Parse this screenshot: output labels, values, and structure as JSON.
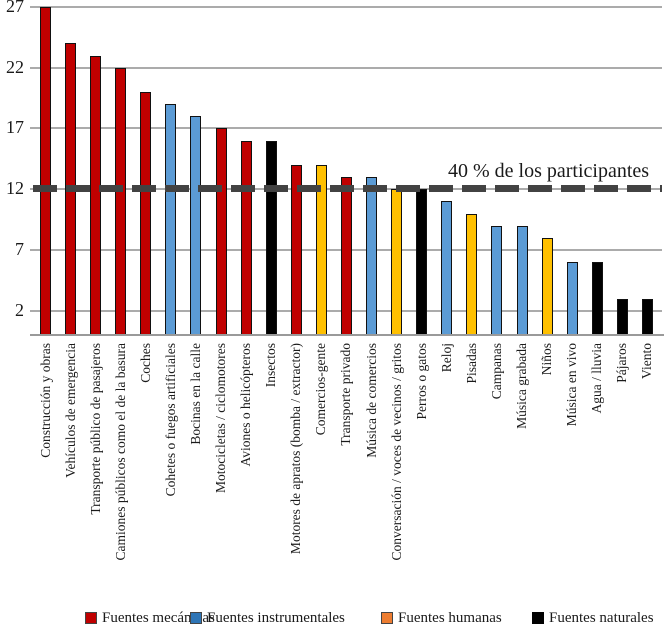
{
  "chart_data": {
    "type": "bar",
    "title": "",
    "xlabel": "",
    "ylabel": "",
    "ylim": [
      0,
      27.5
    ],
    "y_ticks": [
      2,
      7,
      12,
      17,
      22,
      27
    ],
    "grid": true,
    "legend_position": "bottom",
    "reference_line": {
      "value": 12.1,
      "label": "40 % de los participantes",
      "color": "#424242"
    },
    "categories": [
      "Construcción y obras",
      "Vehículos de emergencia",
      "Transporte público de pasajeros",
      "Camiones públicos como el de la basura",
      "Coches",
      "Cohetes o fuegos artificiales",
      "Bocinas en la calle",
      "Motocicletas / ciclomotores",
      "Aviones o helicópteros",
      "Insectos",
      "Motores de apratos (bomba / extractor)",
      "Comercios-gente",
      "Transporte privado",
      "Música de comercios",
      "Conversación / voces de vecinos / gritos",
      "Perros o gatos",
      "Reloj",
      "Pisadas",
      "Campanas",
      "Música grabada",
      "Niños",
      "Música en vivo",
      "Agua / lluvia",
      "Pájaros",
      "Viento"
    ],
    "values": [
      27,
      24,
      23,
      22,
      20,
      19,
      18,
      17,
      16,
      16,
      14,
      14,
      13,
      13,
      12,
      12,
      11,
      10,
      9,
      9,
      8,
      6,
      6,
      3,
      3
    ],
    "bar_groups": [
      "mecanicas",
      "mecanicas",
      "mecanicas",
      "mecanicas",
      "mecanicas",
      "instrumentales",
      "instrumentales",
      "mecanicas",
      "mecanicas",
      "naturales",
      "mecanicas",
      "humanas",
      "mecanicas",
      "instrumentales",
      "humanas",
      "naturales",
      "instrumentales",
      "humanas",
      "instrumentales",
      "instrumentales",
      "humanas",
      "instrumentales",
      "naturales",
      "naturales",
      "naturales"
    ],
    "group_bar_colors": {
      "mecanicas": "#C00000",
      "instrumentales": "#5B9BD5",
      "humanas": "#FFC000",
      "naturales": "#000000"
    },
    "legend": [
      {
        "label": "Fuentes mecánicas",
        "color": "#C00000"
      },
      {
        "label": "Fuentes instrumentales",
        "color": "#2E75B6"
      },
      {
        "label": "Fuentes humanas",
        "color": "#ED7D31"
      },
      {
        "label": "Fuentes naturales",
        "color": "#000000"
      }
    ]
  }
}
